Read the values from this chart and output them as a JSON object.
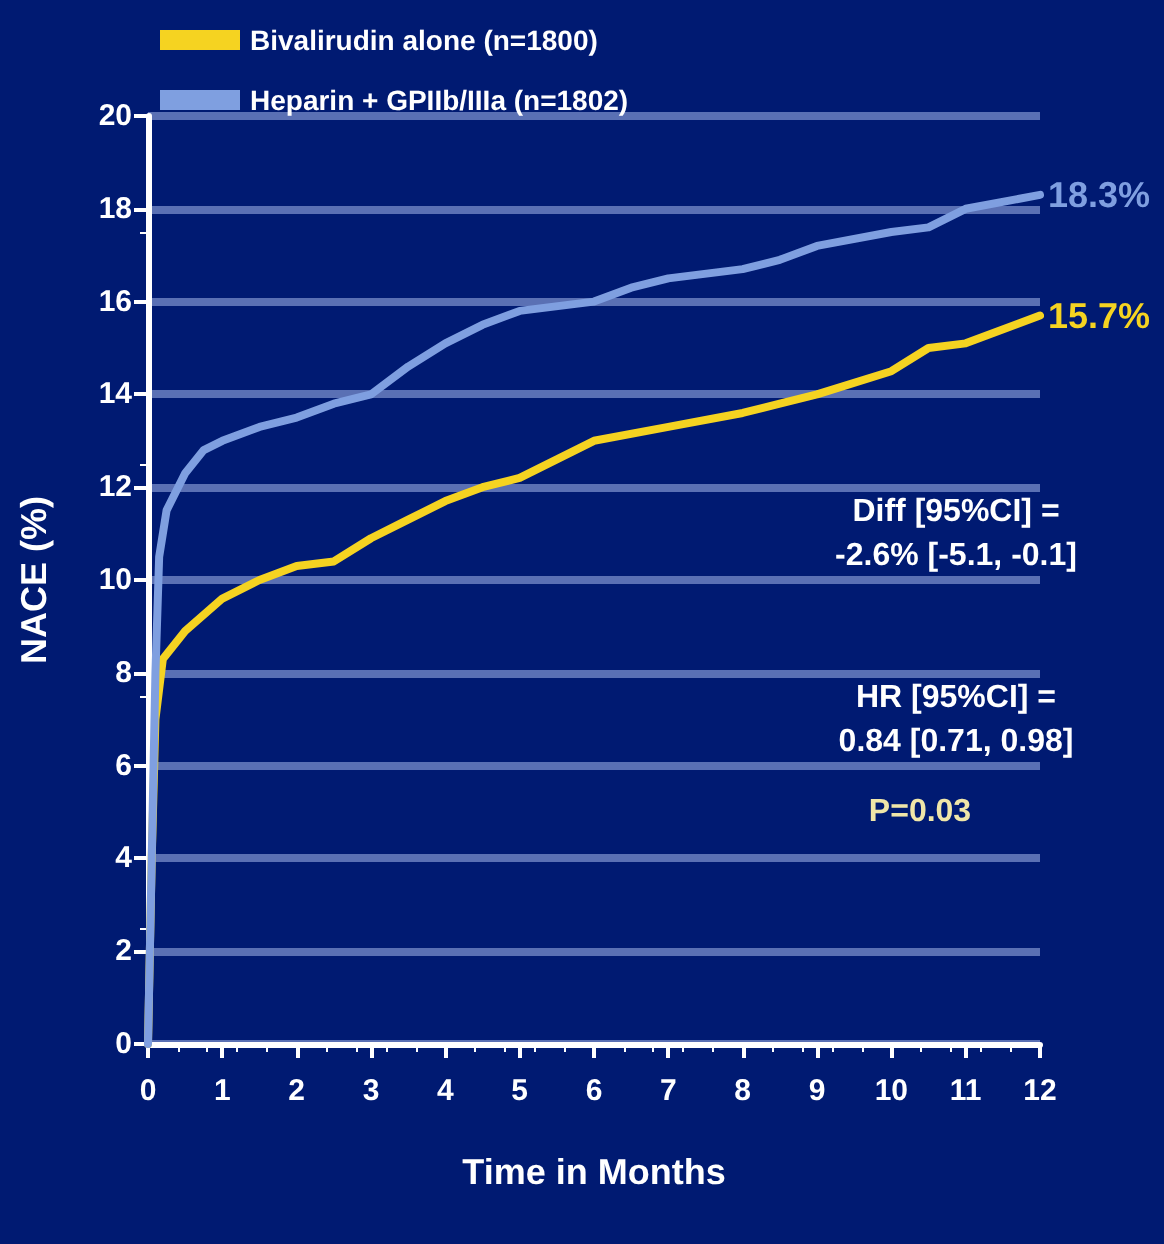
{
  "chart_data": {
    "type": "line",
    "xlabel": "Time in Months",
    "ylabel": "NACE (%)",
    "xlim": [
      0,
      12
    ],
    "xticks": [
      0,
      1,
      2,
      3,
      4,
      5,
      6,
      7,
      8,
      9,
      10,
      11,
      12
    ],
    "ylim": [
      0,
      20
    ],
    "yticks": [
      0,
      2,
      4,
      6,
      8,
      10,
      12,
      14,
      16,
      18,
      20
    ],
    "grid": "y",
    "legend": "top left",
    "marker": "none",
    "line_style": "solid",
    "series": [
      {
        "name": "Bivalirudin alone (n=1800)",
        "color": "#f5d321",
        "x": [
          0,
          0.05,
          0.1,
          0.2,
          0.5,
          1,
          1.5,
          2,
          2.5,
          3,
          3.5,
          4,
          4.5,
          5,
          5.5,
          6,
          7,
          8,
          8.5,
          9,
          10,
          10.5,
          11,
          12
        ],
        "values": [
          0,
          4,
          7,
          8.3,
          8.9,
          9.6,
          10,
          10.3,
          10.4,
          10.9,
          11.3,
          11.7,
          12,
          12.2,
          12.6,
          13,
          13.3,
          13.6,
          13.8,
          14,
          14.5,
          15,
          15.1,
          15.7
        ]
      },
      {
        "name": "Heparin + GPIIb/IIIa (n=1802)",
        "color": "#7f9fe0",
        "x": [
          0,
          0.05,
          0.1,
          0.15,
          0.25,
          0.5,
          0.75,
          1,
          1.5,
          2,
          2.5,
          3,
          3.5,
          4,
          4.5,
          5,
          6,
          6.5,
          7,
          8,
          8.5,
          9,
          10,
          10.5,
          11,
          12
        ],
        "values": [
          0,
          4,
          8,
          10.5,
          11.5,
          12.3,
          12.8,
          13,
          13.3,
          13.5,
          13.8,
          14,
          14.6,
          15.1,
          15.5,
          15.8,
          16,
          16.3,
          16.5,
          16.7,
          16.9,
          17.2,
          17.5,
          17.6,
          18,
          18.3
        ]
      }
    ],
    "annotations": [
      {
        "text": "18.3%",
        "x": 12,
        "y": 18.3
      },
      {
        "text": "15.7%",
        "x": 12,
        "y": 15.7
      },
      "Diff [95%CI] =",
      "-2.6% [-5.1, -0.1]",
      "HR [95%CI] =",
      "0.84 [0.71, 0.98]",
      "P=0.03"
    ]
  }
}
